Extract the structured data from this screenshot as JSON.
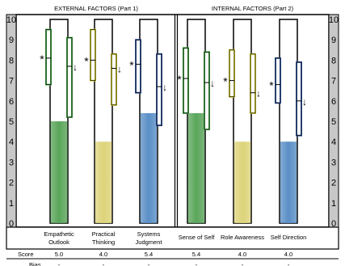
{
  "chart_data": {
    "type": "bar",
    "groups": [
      {
        "title": "EXTERNAL FACTORS (Part 1)",
        "categories": [
          0,
          1,
          2
        ]
      },
      {
        "title": "INTERNAL FACTORS (Part 2)",
        "categories": [
          3,
          4,
          5
        ]
      }
    ],
    "categories": [
      {
        "label": [
          "Empathetic",
          "Outlook"
        ],
        "score": 5.0,
        "color": "#5aa55a",
        "range": [
          6.8,
          9.5
        ],
        "marker": 8.1,
        "range2": [
          5.2,
          9.1
        ],
        "arrow": 7.7,
        "rangeColor": "#4caf4c"
      },
      {
        "label": [
          "Practical",
          "Thinking"
        ],
        "score": 4.0,
        "color": "#ddd37a",
        "range": [
          7.0,
          9.5
        ],
        "marker": 8.0,
        "range2": [
          5.8,
          8.3
        ],
        "arrow": 7.6,
        "rangeColor": "#d8d33a"
      },
      {
        "label": [
          "Systems",
          "Judgment"
        ],
        "score": 5.4,
        "color": "#5a8fc6",
        "range": [
          6.4,
          9.0
        ],
        "marker": 7.8,
        "range2": [
          4.8,
          8.3
        ],
        "arrow": 6.7,
        "rangeColor": "#3a5fa6"
      },
      {
        "label": [
          "Sense of Self"
        ],
        "score": 5.4,
        "color": "#5aa55a",
        "range": [
          5.4,
          8.6
        ],
        "marker": 7.1,
        "range2": [
          4.6,
          8.4
        ],
        "arrow": 6.9,
        "rangeColor": "#4caf4c"
      },
      {
        "label": [
          "Role Awareness"
        ],
        "score": 4.0,
        "color": "#ddd37a",
        "range": [
          6.2,
          8.5
        ],
        "marker": 7.0,
        "range2": [
          5.4,
          8.3
        ],
        "arrow": 6.4,
        "rangeColor": "#d8d33a"
      },
      {
        "label": [
          "Self Direction"
        ],
        "score": 4.0,
        "color": "#5a8fc6",
        "range": [
          5.9,
          8.1
        ],
        "marker": 6.8,
        "range2": [
          4.3,
          7.9
        ],
        "arrow": 6.0,
        "rangeColor": "#3a5fa6"
      }
    ],
    "scores_display": [
      "5.0",
      "4.0",
      "5.4",
      "5.4",
      "4.0",
      "4.0"
    ],
    "row_labels": {
      "score": "Score",
      "bias": "Bias"
    },
    "bias_display": [
      "-",
      "-",
      "-",
      "-",
      "-",
      "-"
    ],
    "ylim": [
      0,
      10
    ],
    "yticks": [
      0,
      1,
      2,
      3,
      4,
      5,
      6,
      7,
      8,
      9,
      10
    ],
    "marker_symbol": "*",
    "arrow_symbol": "↓",
    "grid": false
  }
}
